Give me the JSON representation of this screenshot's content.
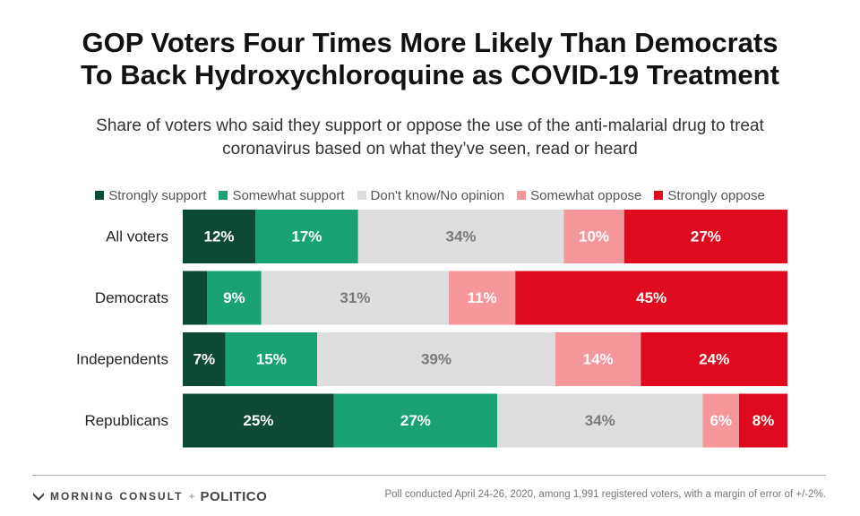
{
  "header": {
    "title_line1": "GOP Voters Four Times More Likely Than Democrats",
    "title_line2": "To Back Hydroxychloroquine as COVID-19 Treatment",
    "subtitle": "Share of voters who said they support or oppose the use of the anti-malarial drug to treat coronavirus based on what they’ve seen, read or heard"
  },
  "footer": {
    "brand_morning_consult": "MORNING CONSULT",
    "brand_separator": "+",
    "brand_politico": "POLITICO",
    "note": "Poll conducted April 24-26, 2020, among 1,991 registered voters, with a margin of error of +/-2%."
  },
  "chart_data": {
    "type": "bar",
    "orientation": "horizontal",
    "stacked": true,
    "normalized_percent": true,
    "legend_position": "top",
    "grid": false,
    "xlim": [
      0,
      100
    ],
    "categories": [
      "All voters",
      "Democrats",
      "Independents",
      "Republicans"
    ],
    "series": [
      {
        "name": "Strongly support",
        "color": "#0d4a33",
        "label_color": "#ffffff",
        "values": [
          12,
          4,
          7,
          25
        ],
        "labels": [
          "12%",
          "",
          "7%",
          "25%"
        ]
      },
      {
        "name": "Somewhat support",
        "color": "#19a276",
        "label_color": "#ffffff",
        "values": [
          17,
          9,
          15,
          27
        ],
        "labels": [
          "17%",
          "9%",
          "15%",
          "27%"
        ]
      },
      {
        "name": "Don't know/No opinion",
        "color": "#dedede",
        "label_color": "#7a7a7a",
        "values": [
          34,
          31,
          39,
          34
        ],
        "labels": [
          "34%",
          "31%",
          "39%",
          "34%"
        ]
      },
      {
        "name": "Somewhat oppose",
        "color": "#f6979c",
        "label_color": "#ffffff",
        "values": [
          10,
          11,
          14,
          6
        ],
        "labels": [
          "10%",
          "11%",
          "14%",
          "6%"
        ]
      },
      {
        "name": "Strongly oppose",
        "color": "#e00a1e",
        "label_color": "#ffffff",
        "values": [
          27,
          45,
          24,
          8
        ],
        "labels": [
          "27%",
          "45%",
          "24%",
          "8%"
        ]
      }
    ]
  }
}
